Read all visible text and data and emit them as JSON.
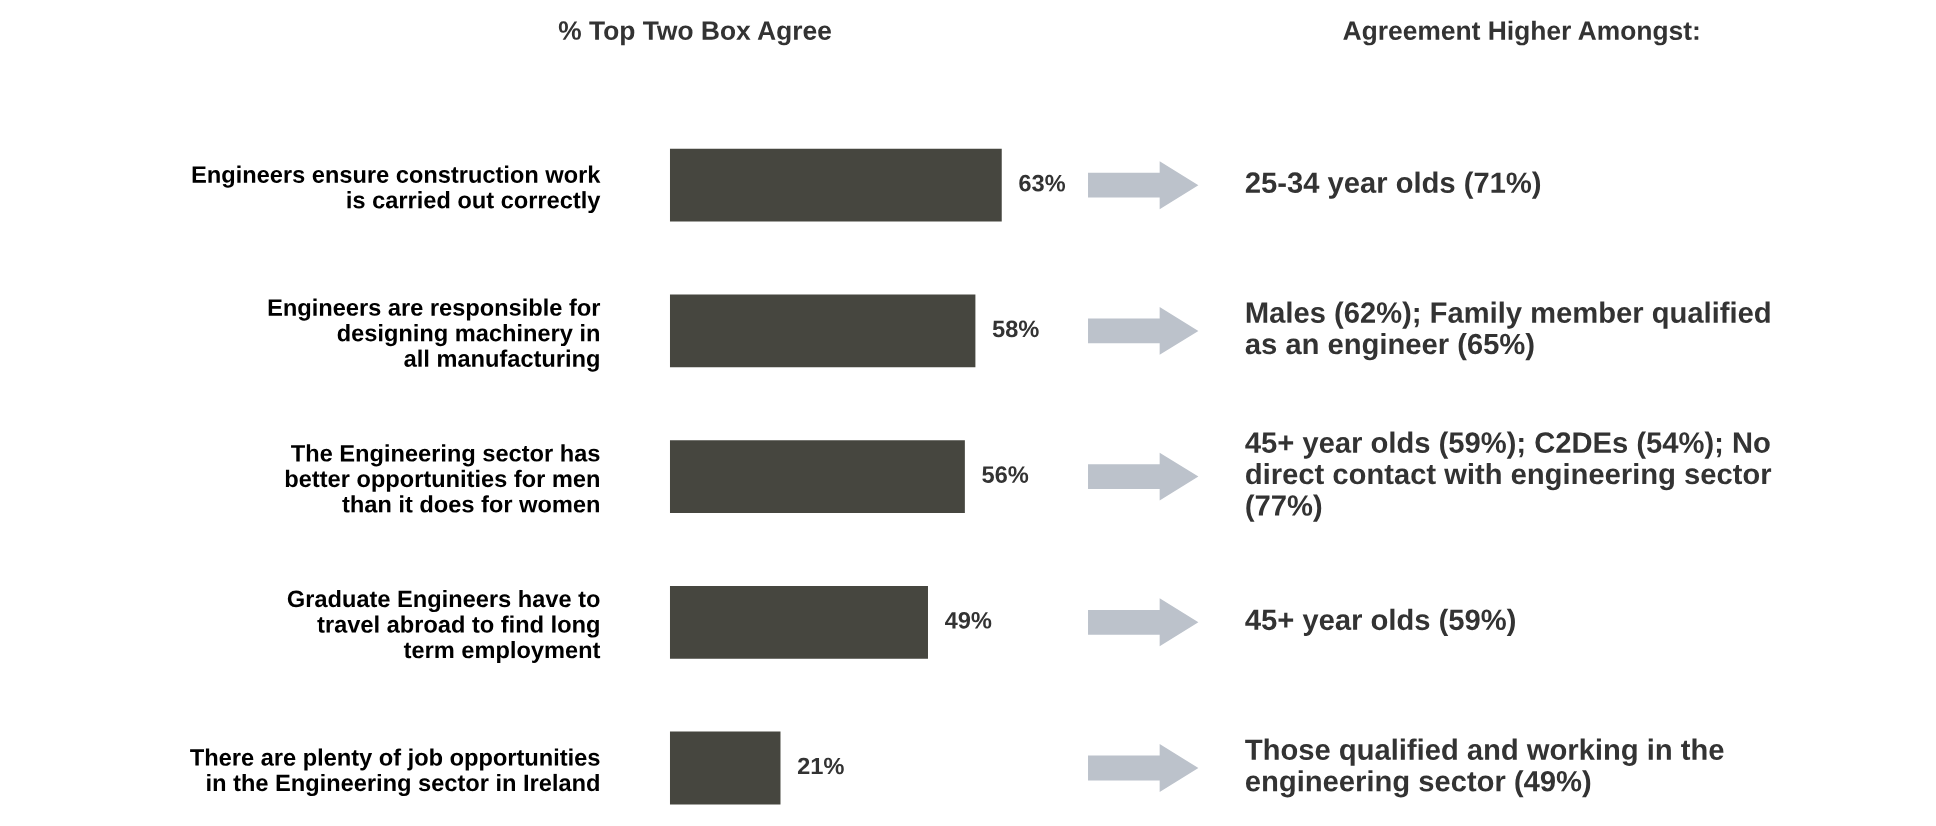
{
  "chart_data": {
    "type": "bar",
    "orientation": "horizontal",
    "title": "% Top Two Box Agree",
    "categories": [
      "Engineers ensure construction work\nis carried out correctly",
      "Engineers are responsible for\ndesigning machinery in\nall manufacturing",
      "The Engineering sector has\nbetter opportunities for men\nthan it does for women",
      "Graduate Engineers have to\ntravel abroad to find long\nterm employment",
      "There are plenty of job opportunities\nin the Engineering sector in Ireland"
    ],
    "values": [
      63,
      58,
      56,
      49,
      21
    ],
    "color": "#46463f",
    "data_labels": true,
    "value_labels": [
      "63%",
      "58%",
      "56%",
      "49%",
      "21%"
    ],
    "annotations": [
      "Agreement Higher Amongst:",
      "25-34 year olds (71%)",
      "Males (62%); Family member qualified\nas an engineer (65%)",
      "45+ year olds (59%); C2DEs (54%); No\ndirect contact with engineering sector\n(77%)",
      "45+ year olds (59%)",
      "Those qualified and working in the\nengineering sector (49%)"
    ],
    "grid": false,
    "legend": false
  }
}
